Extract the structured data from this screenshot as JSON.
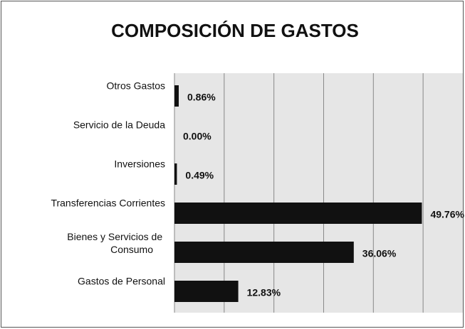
{
  "chart_data": {
    "type": "barh",
    "title": "COMPOSICIÓN DE GASTOS",
    "categories": [
      "Gastos de Personal",
      "Bienes y Servicios de Consumo",
      "Transferencias Corrientes",
      "Inversiones",
      "Servicio de la Deuda",
      "Otros Gastos"
    ],
    "values": [
      12.83,
      36.06,
      49.76,
      0.49,
      0.0,
      0.86
    ],
    "value_labels": [
      "12.83%",
      "36.06%",
      "49.76%",
      "0.49%",
      "0.00%",
      "0.86%"
    ],
    "color": "#111111",
    "xlim": [
      0,
      58
    ],
    "xticks": [
      0,
      10,
      20,
      30,
      40,
      50
    ],
    "grid": true
  }
}
